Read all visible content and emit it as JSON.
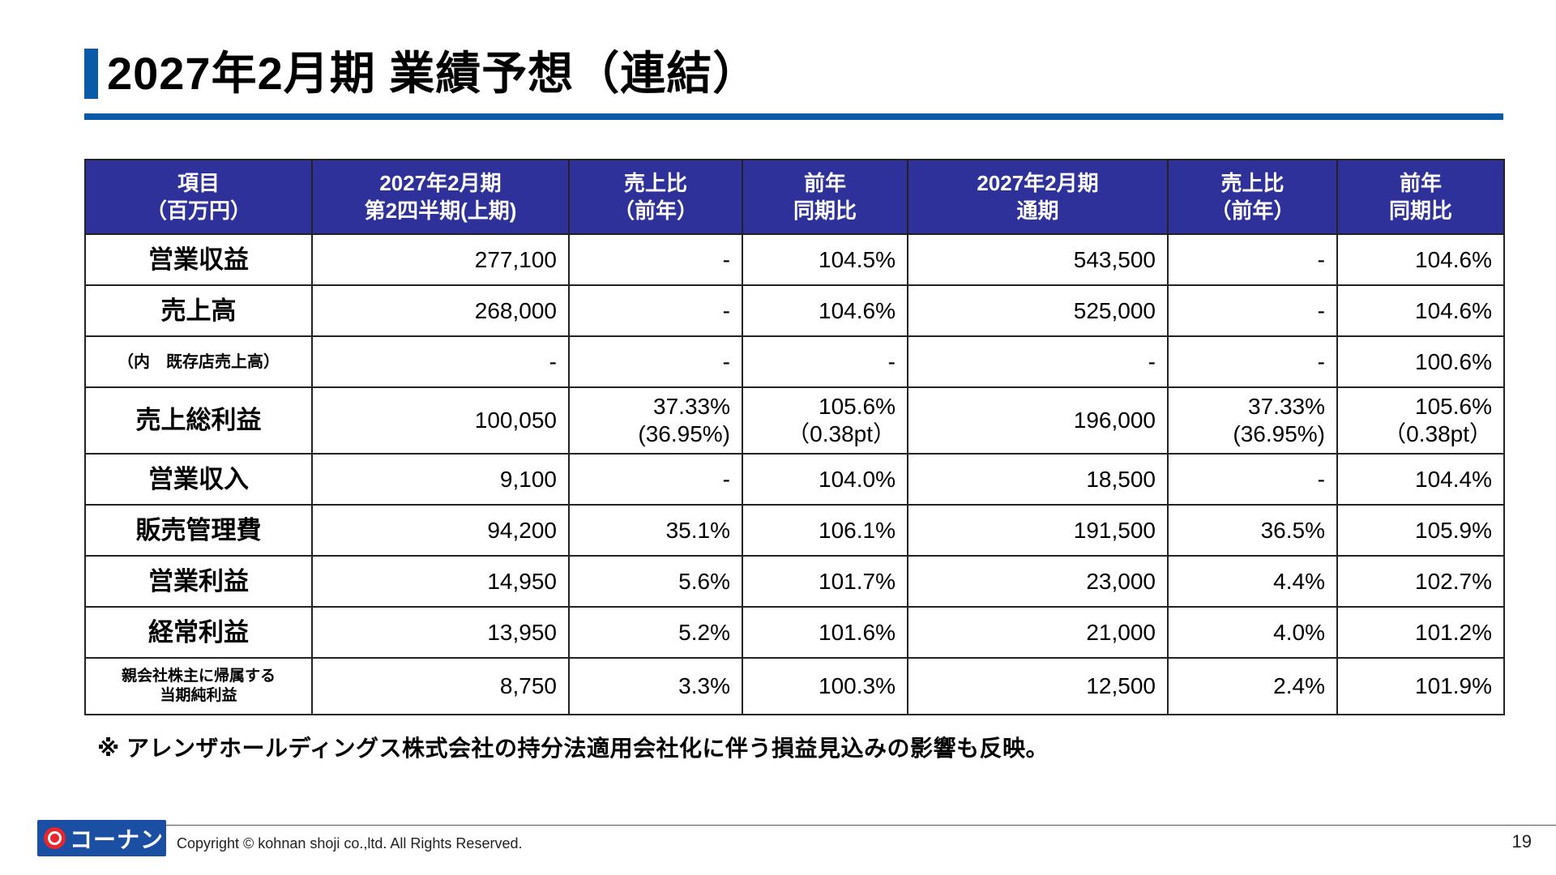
{
  "title": "2027年2月期 業績予想（連結）",
  "table": {
    "headers": [
      "項目\n（百万円）",
      "2027年2月期\n第2四半期(上期)",
      "売上比\n（前年）",
      "前年\n同期比",
      "2027年2月期\n通期",
      "売上比\n（前年）",
      "前年\n同期比"
    ],
    "rows": [
      {
        "cells": [
          "営業収益",
          "277,100",
          "-",
          "104.5%",
          "543,500",
          "-",
          "104.6%"
        ]
      },
      {
        "cells": [
          "売上高",
          "268,000",
          "-",
          "104.6%",
          "525,000",
          "-",
          "104.6%"
        ]
      },
      {
        "cells": [
          "（内　既存店売上高）",
          "-",
          "-",
          "-",
          "-",
          "-",
          "100.6%"
        ]
      },
      {
        "cells": [
          "売上総利益",
          "100,050",
          "37.33%\n(36.95%)",
          "105.6%\n（0.38pt）",
          "196,000",
          "37.33%\n(36.95%)",
          "105.6%\n（0.38pt）"
        ]
      },
      {
        "cells": [
          "営業収入",
          "9,100",
          "-",
          "104.0%",
          "18,500",
          "-",
          "104.4%"
        ]
      },
      {
        "cells": [
          "販売管理費",
          "94,200",
          "35.1%",
          "106.1%",
          "191,500",
          "36.5%",
          "105.9%"
        ]
      },
      {
        "cells": [
          "営業利益",
          "14,950",
          "5.6%",
          "101.7%",
          "23,000",
          "4.4%",
          "102.7%"
        ]
      },
      {
        "cells": [
          "経常利益",
          "13,950",
          "5.2%",
          "101.6%",
          "21,000",
          "4.0%",
          "101.2%"
        ]
      },
      {
        "cells": [
          "親会社株主に帰属する\n当期純利益",
          "8,750",
          "3.3%",
          "100.3%",
          "12,500",
          "2.4%",
          "101.9%"
        ]
      }
    ]
  },
  "note": "※ アレンザホールディングス株式会社の持分法適用会社化に伴う損益見込みの影響も反映。",
  "footer": {
    "logo_text": "コーナン",
    "copyright": "Copyright © kohnan shoji co.,ltd. All Rights Reserved.",
    "page_number": "19"
  },
  "colors": {
    "accent_blue": "#0b5aa8",
    "header_fill": "#2f319a",
    "logo_blue": "#1a4fa3",
    "logo_red": "#e8262b"
  }
}
